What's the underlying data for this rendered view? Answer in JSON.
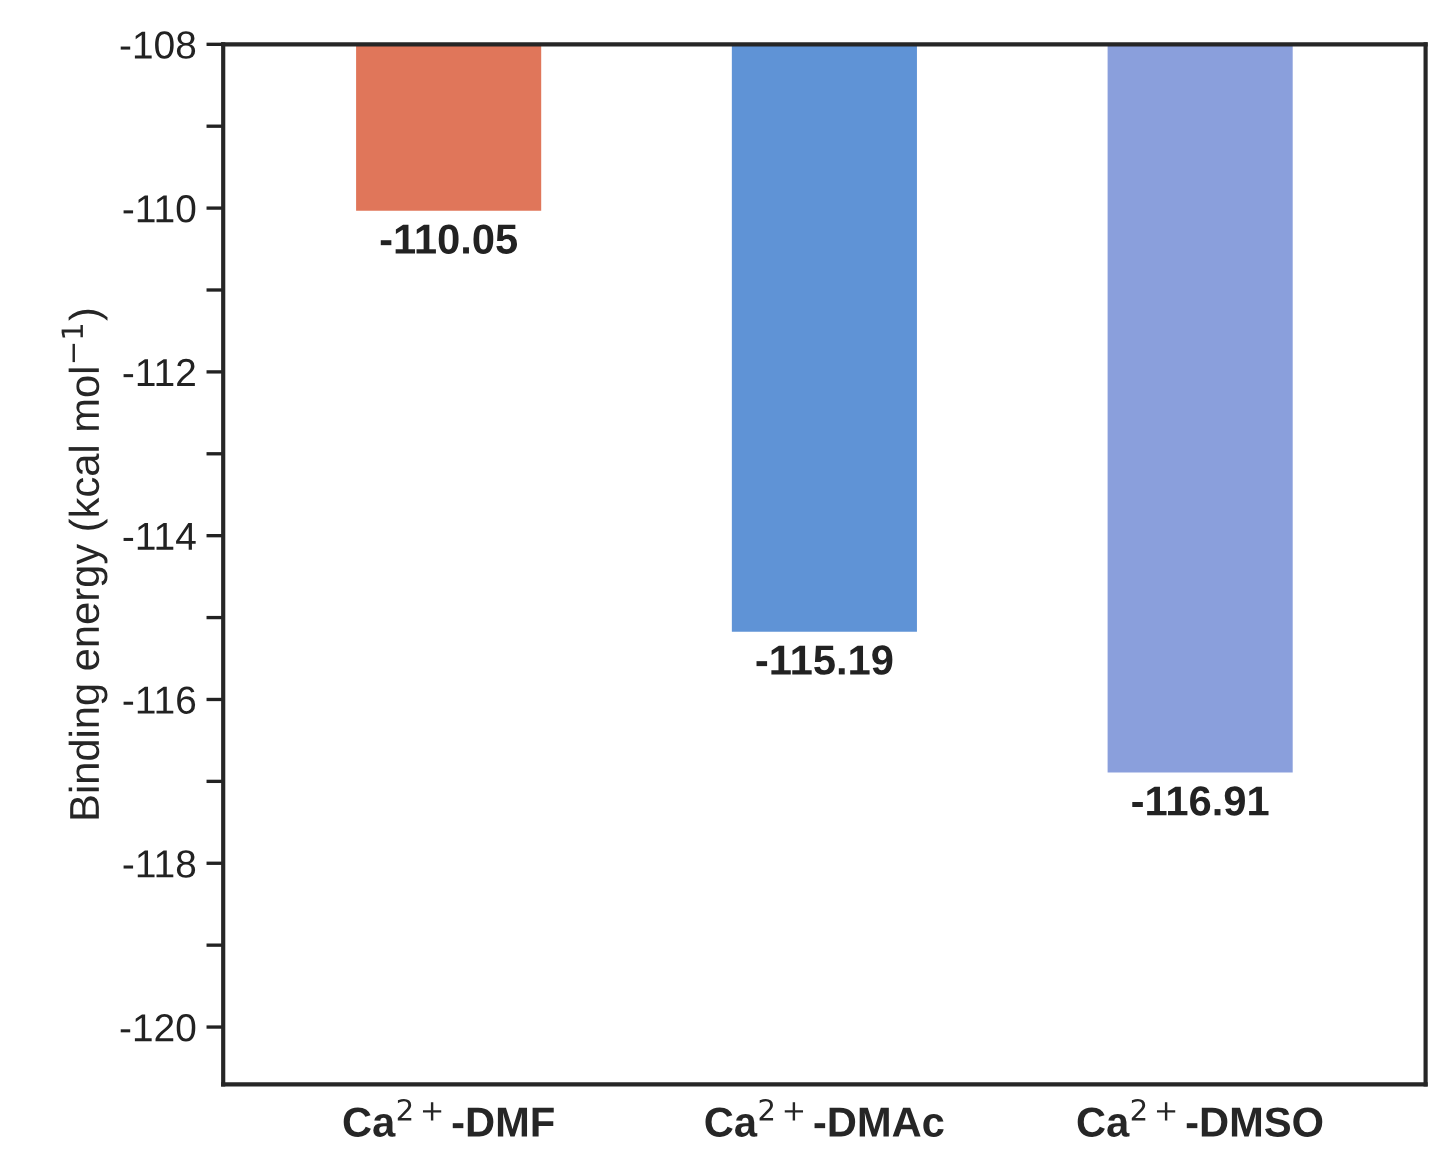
{
  "chart_data": {
    "type": "bar",
    "ylabel": "Binding energy (kcal mol$^{−1}$)",
    "categories": [
      "Ca$^{2+}$-DMF",
      "Ca$^{2+}$-DMAc",
      "Ca$^{2+}$-DMSO"
    ],
    "values": [
      -110.05,
      -115.19,
      -116.91
    ],
    "colors": [
      "#e0765a",
      "#5f93d6",
      "#8a9fdc"
    ],
    "ylim": [
      -120.7,
      -108
    ],
    "yticks": [
      -108,
      {
        "value": -109,
        "label": null
      },
      -110,
      {
        "value": -111,
        "label": null
      },
      -112,
      {
        "value": -113,
        "label": null
      },
      -114,
      {
        "value": -115,
        "label": null
      },
      -116,
      {
        "value": -117,
        "label": null
      },
      -118,
      {
        "value": -119,
        "label": null
      },
      -120
    ],
    "data_labels": true,
    "grid": false,
    "legend": false
  }
}
